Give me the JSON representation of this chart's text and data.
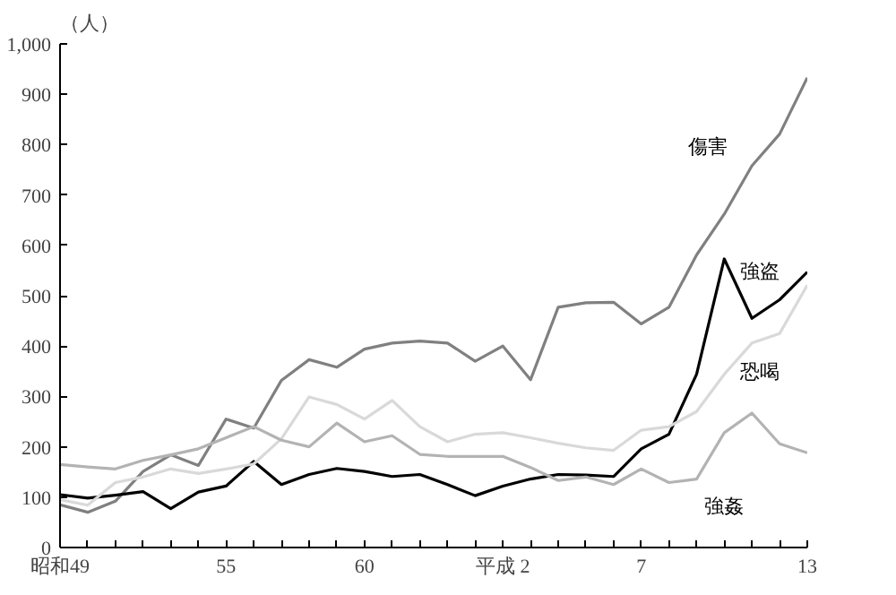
{
  "chart_data": {
    "type": "line",
    "ylabel": "（人）",
    "categories": [
      "昭和49",
      null,
      null,
      null,
      null,
      null,
      "55",
      null,
      null,
      null,
      null,
      "60",
      null,
      null,
      null,
      null,
      "平成 2",
      null,
      null,
      null,
      null,
      "7",
      null,
      null,
      null,
      null,
      null,
      "13"
    ],
    "ylim": [
      0,
      1000
    ],
    "yticks": [
      0,
      100,
      200,
      300,
      400,
      500,
      600,
      700,
      800,
      900,
      {
        "value": 1000,
        "label": "1,000"
      }
    ],
    "grid": false,
    "legend": false,
    "marker": "none",
    "line_style": "solid",
    "series": [
      {
        "name": "傷害",
        "color": "#808080",
        "values": [
          85,
          70,
          92,
          151,
          184,
          163,
          255,
          237,
          332,
          373,
          358,
          394,
          406,
          410,
          406,
          370,
          400,
          333,
          477,
          486,
          487,
          444,
          477,
          581,
          662,
          758,
          821,
          933
        ]
      },
      {
        "name": "強盗",
        "color": "#000000",
        "values": [
          105,
          98,
          104,
          111,
          77,
          110,
          122,
          171,
          125,
          145,
          157,
          151,
          141,
          145,
          125,
          103,
          122,
          136,
          145,
          144,
          141,
          196,
          225,
          344,
          573,
          455,
          492,
          547
        ]
      },
      {
        "name": "恐喝",
        "color": "#d9d9d9",
        "values": [
          95,
          84,
          129,
          140,
          156,
          147,
          156,
          166,
          216,
          299,
          284,
          255,
          292,
          240,
          210,
          225,
          228,
          218,
          207,
          198,
          193,
          233,
          240,
          270,
          344,
          406,
          425,
          521
        ]
      },
      {
        "name": "強姦",
        "color": "#b3b3b3",
        "values": [
          165,
          160,
          156,
          173,
          184,
          196,
          218,
          240,
          213,
          200,
          247,
          210,
          222,
          185,
          181,
          181,
          181,
          159,
          133,
          140,
          125,
          156,
          129,
          136,
          228,
          267,
          206,
          188
        ]
      }
    ]
  }
}
